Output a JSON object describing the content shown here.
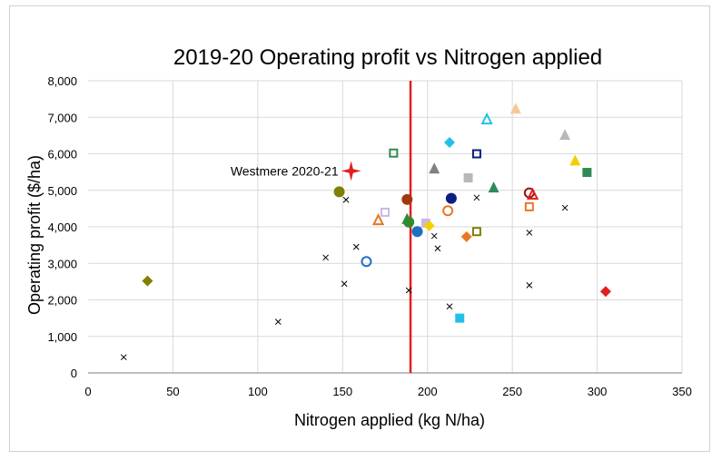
{
  "chart_data": {
    "type": "scatter",
    "title": "2019-20 Operating profit vs Nitrogen applied",
    "xlabel": "Nitrogen applied (kg N/ha)",
    "ylabel": "Operating profit ($/ha)",
    "xlim": [
      0,
      350
    ],
    "ylim": [
      0,
      8000
    ],
    "xticks": [
      0,
      50,
      100,
      150,
      200,
      250,
      300,
      350
    ],
    "yticks": [
      0,
      1000,
      2000,
      3000,
      4000,
      5000,
      6000,
      7000,
      8000
    ],
    "xtick_labels": [
      "0",
      "50",
      "100",
      "150",
      "200",
      "250",
      "300",
      "350"
    ],
    "ytick_labels": [
      "0",
      "1,000",
      "2,000",
      "3,000",
      "4,000",
      "5,000",
      "6,000",
      "7,000",
      "8,000"
    ],
    "grid": true,
    "reference_line": {
      "x": 190,
      "color": "#e02020"
    },
    "annotation": {
      "text": "Westmere 2020-21",
      "x": 155,
      "y": 5530
    },
    "points": [
      {
        "x": 35,
        "y": 2520,
        "marker": "diamond",
        "color": "#808000",
        "fill": true
      },
      {
        "x": 148,
        "y": 4960,
        "marker": "circle",
        "color": "#808000",
        "fill": true
      },
      {
        "x": 164,
        "y": 3050,
        "marker": "circle",
        "color": "#1f6fc0",
        "fill": false
      },
      {
        "x": 171,
        "y": 4170,
        "marker": "triangle",
        "color": "#e87722",
        "fill": false
      },
      {
        "x": 175,
        "y": 4400,
        "marker": "square",
        "color": "#c9b8e8",
        "fill": false
      },
      {
        "x": 180,
        "y": 6020,
        "marker": "square",
        "color": "#2e8b57",
        "fill": false
      },
      {
        "x": 188,
        "y": 4750,
        "marker": "circle",
        "color": "#a0380c",
        "fill": true
      },
      {
        "x": 188,
        "y": 4200,
        "marker": "triangle",
        "color": "#2e8b2e",
        "fill": true
      },
      {
        "x": 189,
        "y": 4130,
        "marker": "circle",
        "color": "#2e8b2e",
        "fill": true
      },
      {
        "x": 194,
        "y": 3870,
        "marker": "circle",
        "color": "#1f6fc0",
        "fill": true
      },
      {
        "x": 199,
        "y": 4100,
        "marker": "square",
        "color": "#c9b8e8",
        "fill": true
      },
      {
        "x": 201,
        "y": 4030,
        "marker": "diamond",
        "color": "#f0d000",
        "fill": true
      },
      {
        "x": 204,
        "y": 5580,
        "marker": "triangle",
        "color": "#808080",
        "fill": true
      },
      {
        "x": 212,
        "y": 4440,
        "marker": "circle",
        "color": "#e87722",
        "fill": false
      },
      {
        "x": 213,
        "y": 6310,
        "marker": "diamond",
        "color": "#22c0e8",
        "fill": true
      },
      {
        "x": 214,
        "y": 4780,
        "marker": "circle",
        "color": "#0d1d80",
        "fill": true
      },
      {
        "x": 219,
        "y": 1500,
        "marker": "square",
        "color": "#22c0e8",
        "fill": true
      },
      {
        "x": 223,
        "y": 3730,
        "marker": "diamond",
        "color": "#e87722",
        "fill": true
      },
      {
        "x": 224,
        "y": 5340,
        "marker": "square",
        "color": "#b8b8b8",
        "fill": true
      },
      {
        "x": 229,
        "y": 3870,
        "marker": "square",
        "color": "#808000",
        "fill": false
      },
      {
        "x": 229,
        "y": 6000,
        "marker": "square",
        "color": "#0d1d80",
        "fill": false
      },
      {
        "x": 235,
        "y": 6930,
        "marker": "triangle",
        "color": "#22c0e8",
        "fill": false
      },
      {
        "x": 239,
        "y": 5060,
        "marker": "triangle",
        "color": "#2e8b57",
        "fill": true
      },
      {
        "x": 252,
        "y": 7220,
        "marker": "triangle",
        "color": "#f5c89a",
        "fill": true
      },
      {
        "x": 260,
        "y": 4930,
        "marker": "circle",
        "color": "#a01010",
        "fill": false
      },
      {
        "x": 260,
        "y": 4550,
        "marker": "square",
        "color": "#e87722",
        "fill": false
      },
      {
        "x": 262,
        "y": 4870,
        "marker": "triangle",
        "color": "#e02020",
        "fill": false
      },
      {
        "x": 281,
        "y": 6500,
        "marker": "triangle",
        "color": "#b8b8b8",
        "fill": true
      },
      {
        "x": 287,
        "y": 5800,
        "marker": "triangle",
        "color": "#f0d000",
        "fill": true
      },
      {
        "x": 294,
        "y": 5490,
        "marker": "square",
        "color": "#2e8b57",
        "fill": true
      },
      {
        "x": 305,
        "y": 2230,
        "marker": "diamond",
        "color": "#e02020",
        "fill": true
      },
      {
        "x": 21,
        "y": 430,
        "marker": "x",
        "color": "#000000",
        "fill": true
      },
      {
        "x": 112,
        "y": 1400,
        "marker": "x",
        "color": "#000000",
        "fill": true
      },
      {
        "x": 140,
        "y": 3160,
        "marker": "x",
        "color": "#000000",
        "fill": true
      },
      {
        "x": 151,
        "y": 2440,
        "marker": "x",
        "color": "#000000",
        "fill": true
      },
      {
        "x": 152,
        "y": 4740,
        "marker": "x",
        "color": "#000000",
        "fill": true
      },
      {
        "x": 158,
        "y": 3450,
        "marker": "x",
        "color": "#000000",
        "fill": true
      },
      {
        "x": 189,
        "y": 2260,
        "marker": "x",
        "color": "#000000",
        "fill": true
      },
      {
        "x": 204,
        "y": 3750,
        "marker": "x",
        "color": "#000000",
        "fill": true
      },
      {
        "x": 206,
        "y": 3410,
        "marker": "x",
        "color": "#000000",
        "fill": true
      },
      {
        "x": 213,
        "y": 1820,
        "marker": "x",
        "color": "#000000",
        "fill": true
      },
      {
        "x": 229,
        "y": 4800,
        "marker": "x",
        "color": "#000000",
        "fill": true
      },
      {
        "x": 260,
        "y": 3840,
        "marker": "x",
        "color": "#000000",
        "fill": true
      },
      {
        "x": 260,
        "y": 2400,
        "marker": "x",
        "color": "#000000",
        "fill": true
      },
      {
        "x": 281,
        "y": 4520,
        "marker": "x",
        "color": "#000000",
        "fill": true
      },
      {
        "x": 155,
        "y": 5530,
        "marker": "star",
        "color": "#e02020",
        "fill": true
      }
    ]
  }
}
